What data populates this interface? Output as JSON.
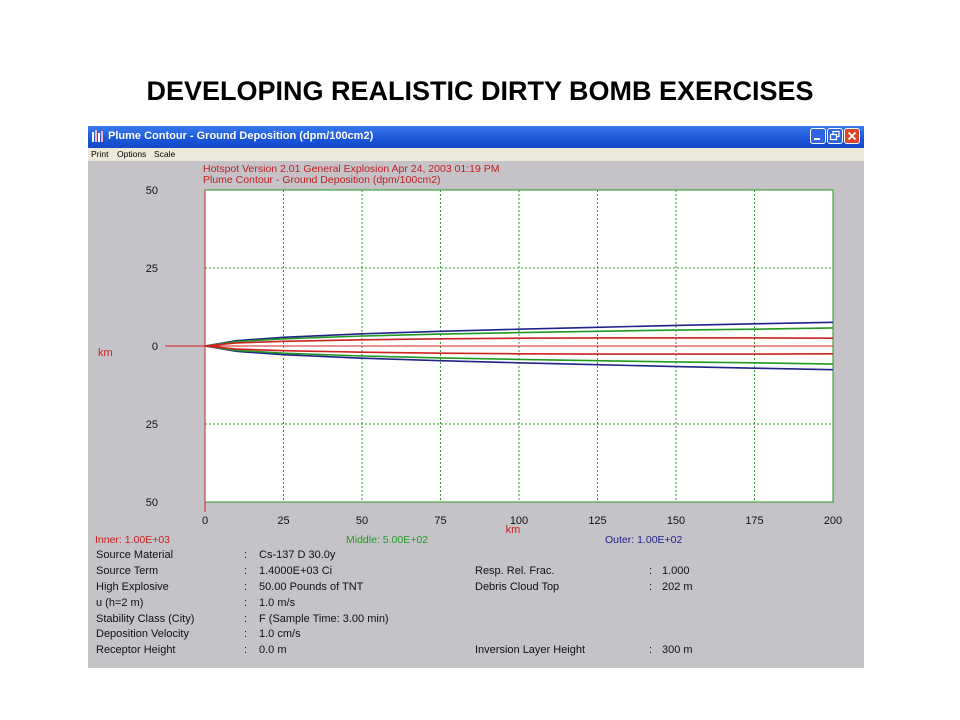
{
  "slide": {
    "title": "DEVELOPING REALISTIC DIRTY BOMB EXERCISES"
  },
  "window": {
    "title": "Plume Contour  - Ground Deposition (dpm/100cm2)"
  },
  "menu": {
    "items": [
      "Print",
      "Options",
      "Scale"
    ]
  },
  "plot_header": {
    "line1": "Hotspot  Version 2.01 General Explosion  Apr 24, 2003 01:19 PM",
    "line2": "Plume Contour  - Ground Deposition (dpm/100cm2)"
  },
  "chart_data": {
    "type": "line",
    "xlabel": "km",
    "ylabel": "km",
    "xlim": [
      0,
      200
    ],
    "ylim": [
      -50,
      50
    ],
    "x_ticks": [
      0,
      25,
      50,
      75,
      100,
      125,
      150,
      175,
      200
    ],
    "x_tick_labels": [
      "0",
      "25",
      "50",
      "75",
      "100",
      "125",
      "150",
      "175",
      "200"
    ],
    "y_ticks": [
      50,
      25,
      0,
      -25,
      -50
    ],
    "y_tick_labels": [
      "50",
      "25",
      "0",
      "25",
      "50"
    ],
    "grid": true,
    "series": [
      {
        "name": "Inner: 1.00E+03",
        "color": "#cc2222",
        "x": [
          0,
          10,
          25,
          50,
          75,
          100,
          125,
          150,
          175,
          200
        ],
        "upper": [
          0,
          1.0,
          1.5,
          2.0,
          2.3,
          2.5,
          2.6,
          2.6,
          2.6,
          2.5
        ],
        "lower": [
          0,
          -1.0,
          -1.5,
          -2.0,
          -2.3,
          -2.5,
          -2.6,
          -2.6,
          -2.6,
          -2.5
        ]
      },
      {
        "name": "Middle: 5.00E+02",
        "color": "#229922",
        "x": [
          0,
          10,
          25,
          50,
          75,
          100,
          125,
          150,
          175,
          200
        ],
        "upper": [
          0,
          1.4,
          2.3,
          3.2,
          3.8,
          4.3,
          4.7,
          5.1,
          5.4,
          5.8
        ],
        "lower": [
          0,
          -1.4,
          -2.3,
          -3.2,
          -3.8,
          -4.3,
          -4.7,
          -5.1,
          -5.4,
          -5.8
        ]
      },
      {
        "name": "Outer: 1.00E+02",
        "color": "#22228a",
        "x": [
          0,
          10,
          25,
          50,
          75,
          100,
          125,
          150,
          175,
          200
        ],
        "upper": [
          0,
          1.7,
          2.8,
          3.9,
          4.7,
          5.4,
          6.0,
          6.6,
          7.1,
          7.6
        ],
        "lower": [
          0,
          -1.7,
          -2.8,
          -3.9,
          -4.7,
          -5.4,
          -6.0,
          -6.6,
          -7.1,
          -7.6
        ]
      }
    ]
  },
  "legend": {
    "inner": "Inner: 1.00E+03",
    "middle": "Middle: 5.00E+02",
    "outer": "Outer: 1.00E+02"
  },
  "info": {
    "left": [
      {
        "label": "Source Material",
        "value": "Cs-137  D    30.0y"
      },
      {
        "label": "Source Term",
        "value": "1.4000E+03 Ci"
      },
      {
        "label": "High Explosive",
        "value": "50.00 Pounds of TNT"
      },
      {
        "label": "u (h=2 m)",
        "value": "1.0 m/s"
      },
      {
        "label": "Stability Class (City)",
        "value": "F (Sample Time: 3.00 min)"
      },
      {
        "label": "Deposition Velocity",
        "value": "1.0 cm/s"
      },
      {
        "label": "Receptor Height",
        "value": "0.0 m"
      }
    ],
    "right": [
      {
        "label": "Resp. Rel. Frac.",
        "value": "1.000"
      },
      {
        "label": "Debris Cloud Top",
        "value": "202 m"
      },
      {
        "label": "Inversion Layer Height",
        "value": "300 m"
      }
    ],
    "separator": ":"
  },
  "colors": {
    "plot_frame": "#2a9a2a",
    "grid": "#2a9a2a",
    "axis_zero": "#cc2222",
    "window_bg": "#c5c2c8",
    "titlebar": "#1a55d8"
  }
}
